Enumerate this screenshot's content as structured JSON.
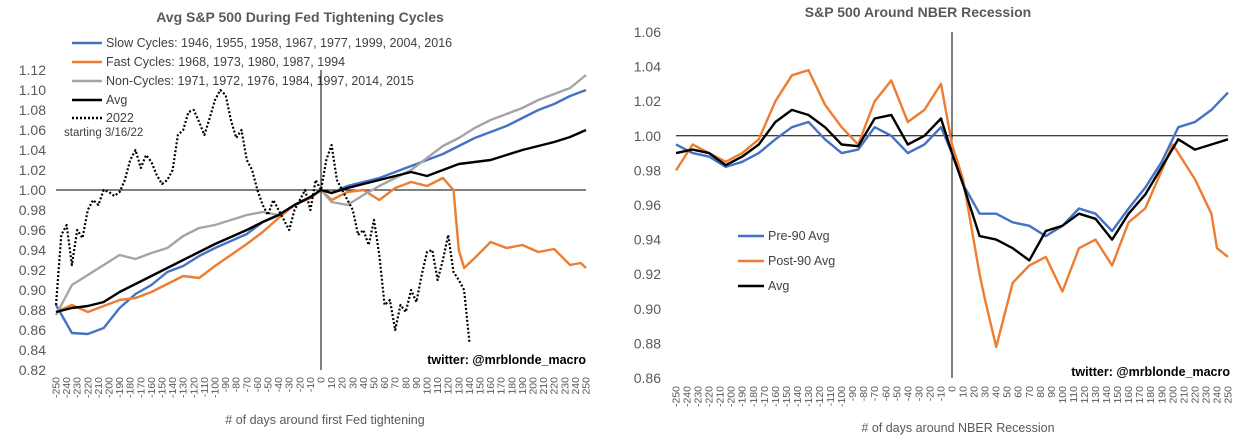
{
  "chart_data": [
    {
      "type": "line",
      "title": "Avg S&P 500 During Fed Tightening Cycles",
      "xlabel": "# of days around first Fed tightening",
      "ylabel": "",
      "xlim": [
        -250,
        250
      ],
      "ylim": [
        0.82,
        1.12
      ],
      "y_ticks": [
        "0.82",
        "0.84",
        "0.86",
        "0.88",
        "0.90",
        "0.92",
        "0.94",
        "0.96",
        "0.98",
        "1.00",
        "1.02",
        "1.04",
        "1.06",
        "1.08",
        "1.10",
        "1.12"
      ],
      "x_ticks": [
        "-250",
        "-240",
        "-230",
        "-220",
        "-210",
        "-200",
        "-190",
        "-180",
        "-170",
        "-160",
        "-150",
        "-140",
        "-130",
        "-120",
        "-110",
        "-100",
        "-90",
        "-80",
        "-70",
        "-60",
        "-50",
        "-40",
        "-30",
        "-20",
        "-10",
        "0",
        "10",
        "20",
        "30",
        "40",
        "50",
        "60",
        "70",
        "80",
        "90",
        "100",
        "110",
        "120",
        "130",
        "140",
        "150",
        "160",
        "170",
        "180",
        "190",
        "200",
        "210",
        "220",
        "230",
        "240",
        "250"
      ],
      "reference_lines": {
        "x": 0,
        "y": 1.0
      },
      "annotation": "starting 3/16/22",
      "credit": "twitter: @mrblonde_macro",
      "legend_position": "top-left",
      "series": [
        {
          "name": "Slow Cycles: 1946, 1955, 1958, 1967, 1977, 1999, 2004, 2016",
          "color": "#4472C4",
          "style": "solid",
          "x": [
            -250,
            -235,
            -220,
            -205,
            -190,
            -175,
            -160,
            -145,
            -130,
            -115,
            -100,
            -85,
            -70,
            -55,
            -40,
            -25,
            -10,
            0,
            10,
            25,
            40,
            55,
            70,
            85,
            100,
            115,
            130,
            145,
            160,
            175,
            190,
            205,
            220,
            235,
            250
          ],
          "values": [
            0.885,
            0.857,
            0.856,
            0.862,
            0.882,
            0.896,
            0.905,
            0.918,
            0.924,
            0.934,
            0.942,
            0.949,
            0.956,
            0.968,
            0.975,
            0.985,
            0.993,
            1.0,
            0.997,
            1.004,
            1.008,
            1.012,
            1.018,
            1.024,
            1.03,
            1.036,
            1.044,
            1.052,
            1.058,
            1.064,
            1.072,
            1.08,
            1.086,
            1.094,
            1.1
          ]
        },
        {
          "name": "Fast Cycles: 1968, 1973, 1980, 1987, 1994",
          "color": "#ED7D31",
          "style": "solid",
          "x": [
            -250,
            -235,
            -220,
            -205,
            -190,
            -175,
            -160,
            -145,
            -130,
            -115,
            -100,
            -85,
            -70,
            -55,
            -40,
            -25,
            -10,
            0,
            10,
            25,
            40,
            55,
            70,
            85,
            100,
            115,
            125,
            130,
            135,
            145,
            160,
            175,
            190,
            205,
            220,
            235,
            245,
            250
          ],
          "values": [
            0.878,
            0.885,
            0.878,
            0.884,
            0.89,
            0.892,
            0.898,
            0.906,
            0.914,
            0.912,
            0.924,
            0.935,
            0.946,
            0.958,
            0.972,
            0.985,
            0.992,
            1.0,
            0.99,
            0.998,
            1.0,
            0.99,
            1.002,
            1.008,
            1.004,
            1.012,
            1.0,
            0.94,
            0.922,
            0.932,
            0.948,
            0.942,
            0.945,
            0.938,
            0.941,
            0.925,
            0.927,
            0.922
          ]
        },
        {
          "name": "Non-Cycles: 1971, 1972, 1976, 1984, 1997, 2014, 2015",
          "color": "#A5A5A5",
          "style": "solid",
          "x": [
            -250,
            -235,
            -220,
            -205,
            -190,
            -175,
            -160,
            -145,
            -130,
            -115,
            -100,
            -85,
            -70,
            -55,
            -40,
            -25,
            -10,
            0,
            10,
            25,
            40,
            55,
            70,
            85,
            100,
            115,
            130,
            145,
            160,
            175,
            190,
            205,
            220,
            235,
            250
          ],
          "values": [
            0.875,
            0.905,
            0.915,
            0.925,
            0.935,
            0.931,
            0.937,
            0.942,
            0.954,
            0.962,
            0.965,
            0.97,
            0.975,
            0.978,
            0.975,
            0.985,
            0.993,
            1.0,
            0.988,
            0.985,
            0.995,
            1.004,
            1.012,
            1.02,
            1.032,
            1.044,
            1.052,
            1.062,
            1.07,
            1.076,
            1.082,
            1.09,
            1.096,
            1.102,
            1.115
          ]
        },
        {
          "name": "Avg",
          "color": "#000000",
          "style": "solid",
          "x": [
            -250,
            -235,
            -220,
            -205,
            -190,
            -175,
            -160,
            -145,
            -130,
            -115,
            -100,
            -85,
            -70,
            -55,
            -40,
            -25,
            -10,
            0,
            10,
            25,
            40,
            55,
            70,
            85,
            100,
            115,
            130,
            145,
            160,
            175,
            190,
            205,
            220,
            235,
            250
          ],
          "values": [
            0.878,
            0.882,
            0.884,
            0.888,
            0.898,
            0.906,
            0.914,
            0.922,
            0.93,
            0.938,
            0.946,
            0.953,
            0.96,
            0.968,
            0.975,
            0.985,
            0.993,
            1.0,
            0.997,
            1.002,
            1.006,
            1.01,
            1.014,
            1.018,
            1.014,
            1.02,
            1.026,
            1.028,
            1.03,
            1.035,
            1.04,
            1.044,
            1.048,
            1.053,
            1.06
          ]
        },
        {
          "name": "2022",
          "color": "#000000",
          "style": "dotted",
          "x": [
            -250,
            -245,
            -240,
            -235,
            -230,
            -225,
            -220,
            -215,
            -210,
            -205,
            -200,
            -195,
            -190,
            -185,
            -180,
            -175,
            -170,
            -165,
            -160,
            -155,
            -150,
            -145,
            -140,
            -135,
            -130,
            -125,
            -120,
            -115,
            -110,
            -105,
            -100,
            -95,
            -90,
            -85,
            -80,
            -75,
            -70,
            -65,
            -60,
            -55,
            -50,
            -45,
            -40,
            -35,
            -30,
            -25,
            -20,
            -15,
            -10,
            -5,
            0,
            5,
            10,
            15,
            20,
            25,
            30,
            35,
            40,
            45,
            50,
            55,
            60,
            65,
            70,
            75,
            80,
            85,
            90,
            95,
            100,
            105,
            110,
            115,
            120,
            125,
            130,
            135,
            140
          ],
          "values": [
            0.885,
            0.955,
            0.965,
            0.925,
            0.96,
            0.952,
            0.98,
            0.99,
            0.985,
            1.0,
            0.998,
            0.994,
            0.998,
            1.01,
            1.03,
            1.04,
            1.022,
            1.035,
            1.028,
            1.015,
            1.006,
            1.01,
            1.02,
            1.055,
            1.06,
            1.078,
            1.08,
            1.068,
            1.055,
            1.072,
            1.09,
            1.1,
            1.095,
            1.07,
            1.052,
            1.06,
            1.03,
            1.02,
            1.0,
            0.985,
            0.975,
            0.99,
            0.98,
            0.97,
            0.96,
            0.98,
            0.99,
            1.0,
            0.98,
            1.01,
            1.0,
            1.03,
            1.045,
            1.01,
            1.0,
            0.99,
            0.98,
            0.955,
            0.96,
            0.945,
            0.97,
            0.935,
            0.885,
            0.89,
            0.86,
            0.885,
            0.878,
            0.9,
            0.888,
            0.915,
            0.938,
            0.94,
            0.91,
            0.93,
            0.955,
            0.918,
            0.91,
            0.9,
            0.848
          ]
        }
      ]
    },
    {
      "type": "line",
      "title": "S&P 500 Around NBER Recession",
      "xlabel": "# of days around NBER Recession",
      "ylabel": "",
      "xlim": [
        -250,
        250
      ],
      "ylim": [
        0.86,
        1.06
      ],
      "y_ticks": [
        "0.86",
        "0.88",
        "0.90",
        "0.92",
        "0.94",
        "0.96",
        "0.98",
        "1.00",
        "1.02",
        "1.04",
        "1.06"
      ],
      "x_ticks": [
        "-250",
        "-240",
        "-230",
        "-220",
        "-210",
        "-200",
        "-190",
        "-180",
        "-170",
        "-160",
        "-150",
        "-140",
        "-130",
        "-120",
        "-110",
        "-100",
        "-90",
        "-80",
        "-70",
        "-60",
        "-50",
        "-40",
        "-30",
        "-20",
        "-10",
        "0",
        "10",
        "20",
        "30",
        "40",
        "50",
        "60",
        "70",
        "80",
        "90",
        "100",
        "110",
        "120",
        "130",
        "140",
        "150",
        "160",
        "170",
        "180",
        "190",
        "200",
        "210",
        "220",
        "230",
        "240",
        "250"
      ],
      "reference_lines": {
        "x": 0,
        "y": 1.0
      },
      "credit": "twitter: @mrblonde_macro",
      "legend_position": "center-left",
      "series": [
        {
          "name": "Pre-90 Avg",
          "color": "#4472C4",
          "style": "solid",
          "x": [
            -250,
            -235,
            -220,
            -205,
            -190,
            -175,
            -160,
            -145,
            -130,
            -115,
            -100,
            -85,
            -70,
            -55,
            -40,
            -25,
            -10,
            0,
            10,
            25,
            40,
            55,
            70,
            85,
            100,
            115,
            130,
            145,
            160,
            175,
            190,
            205,
            220,
            235,
            250
          ],
          "values": [
            0.995,
            0.99,
            0.988,
            0.982,
            0.985,
            0.99,
            0.998,
            1.005,
            1.008,
            0.998,
            0.99,
            0.992,
            1.005,
            1.0,
            0.99,
            0.995,
            1.005,
            0.99,
            0.972,
            0.955,
            0.955,
            0.95,
            0.948,
            0.942,
            0.948,
            0.958,
            0.955,
            0.945,
            0.958,
            0.97,
            0.985,
            1.005,
            1.008,
            1.015,
            1.025
          ]
        },
        {
          "name": "Post-90 Avg",
          "color": "#ED7D31",
          "style": "solid",
          "x": [
            -250,
            -235,
            -220,
            -205,
            -190,
            -175,
            -160,
            -145,
            -130,
            -115,
            -100,
            -85,
            -70,
            -55,
            -40,
            -25,
            -10,
            0,
            10,
            25,
            30,
            40,
            55,
            70,
            85,
            100,
            115,
            130,
            145,
            160,
            175,
            190,
            200,
            205,
            220,
            235,
            240,
            250
          ],
          "values": [
            0.98,
            0.995,
            0.99,
            0.985,
            0.99,
            0.998,
            1.02,
            1.035,
            1.038,
            1.018,
            1.005,
            0.995,
            1.02,
            1.032,
            1.008,
            1.015,
            1.03,
            0.995,
            0.975,
            0.92,
            0.905,
            0.878,
            0.915,
            0.925,
            0.93,
            0.91,
            0.935,
            0.94,
            0.925,
            0.95,
            0.958,
            0.98,
            0.995,
            0.99,
            0.975,
            0.955,
            0.935,
            0.93
          ]
        },
        {
          "name": "Avg",
          "color": "#000000",
          "style": "solid",
          "x": [
            -250,
            -235,
            -220,
            -205,
            -190,
            -175,
            -160,
            -145,
            -130,
            -115,
            -100,
            -85,
            -70,
            -55,
            -40,
            -25,
            -10,
            0,
            10,
            25,
            40,
            55,
            70,
            85,
            100,
            115,
            130,
            145,
            160,
            175,
            190,
            205,
            220,
            235,
            250
          ],
          "values": [
            0.99,
            0.992,
            0.99,
            0.983,
            0.988,
            0.995,
            1.008,
            1.015,
            1.012,
            1.005,
            0.995,
            0.994,
            1.01,
            1.012,
            0.995,
            1.0,
            1.01,
            0.99,
            0.972,
            0.942,
            0.94,
            0.935,
            0.928,
            0.945,
            0.948,
            0.955,
            0.952,
            0.94,
            0.955,
            0.966,
            0.982,
            0.998,
            0.992,
            0.995,
            0.998
          ]
        }
      ]
    }
  ]
}
